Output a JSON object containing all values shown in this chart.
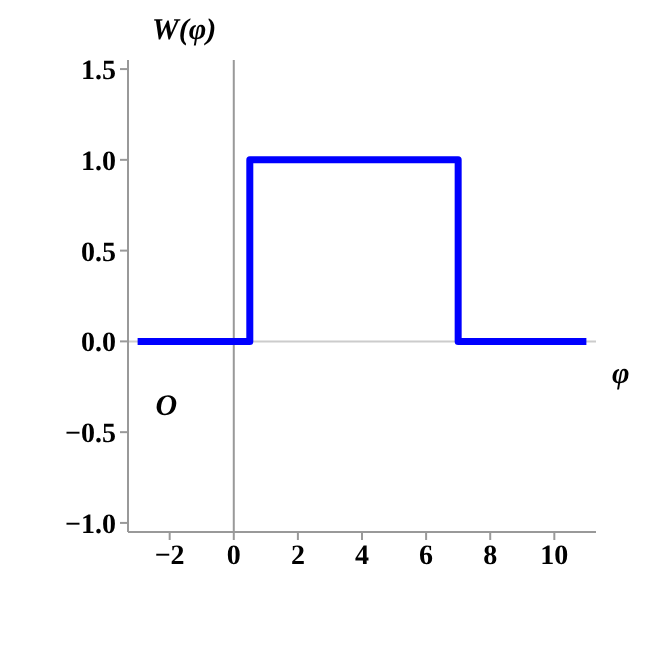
{
  "chart_data": {
    "type": "line",
    "xlabel": "φ",
    "ylabel": "W(φ)",
    "annotations": [
      {
        "text": "O",
        "x": 0,
        "y": 0
      }
    ],
    "series": [
      {
        "color": "#0000ff",
        "x": [
          -3,
          0.5,
          0.5,
          7,
          7,
          11
        ],
        "values": [
          0,
          0,
          1,
          1,
          0,
          0
        ]
      }
    ],
    "xlim": [
      -3.3,
      11.3
    ],
    "xticks": [
      -2,
      0,
      2,
      4,
      6,
      8,
      10
    ],
    "ylim": [
      -1.05,
      1.55
    ],
    "yticks": [
      {
        "value": -1,
        "label": "−1.0"
      },
      -0.5,
      {
        "value": 0,
        "label": "0.0"
      },
      0.5,
      {
        "value": 1,
        "label": "1.0"
      },
      1.5
    ],
    "ref_lines": [
      {
        "axis": "x",
        "value": 0,
        "color": "#999999"
      },
      {
        "axis": "y",
        "value": 0,
        "color": "#cccccc"
      }
    ],
    "marker": "none",
    "line_style": "solid"
  }
}
